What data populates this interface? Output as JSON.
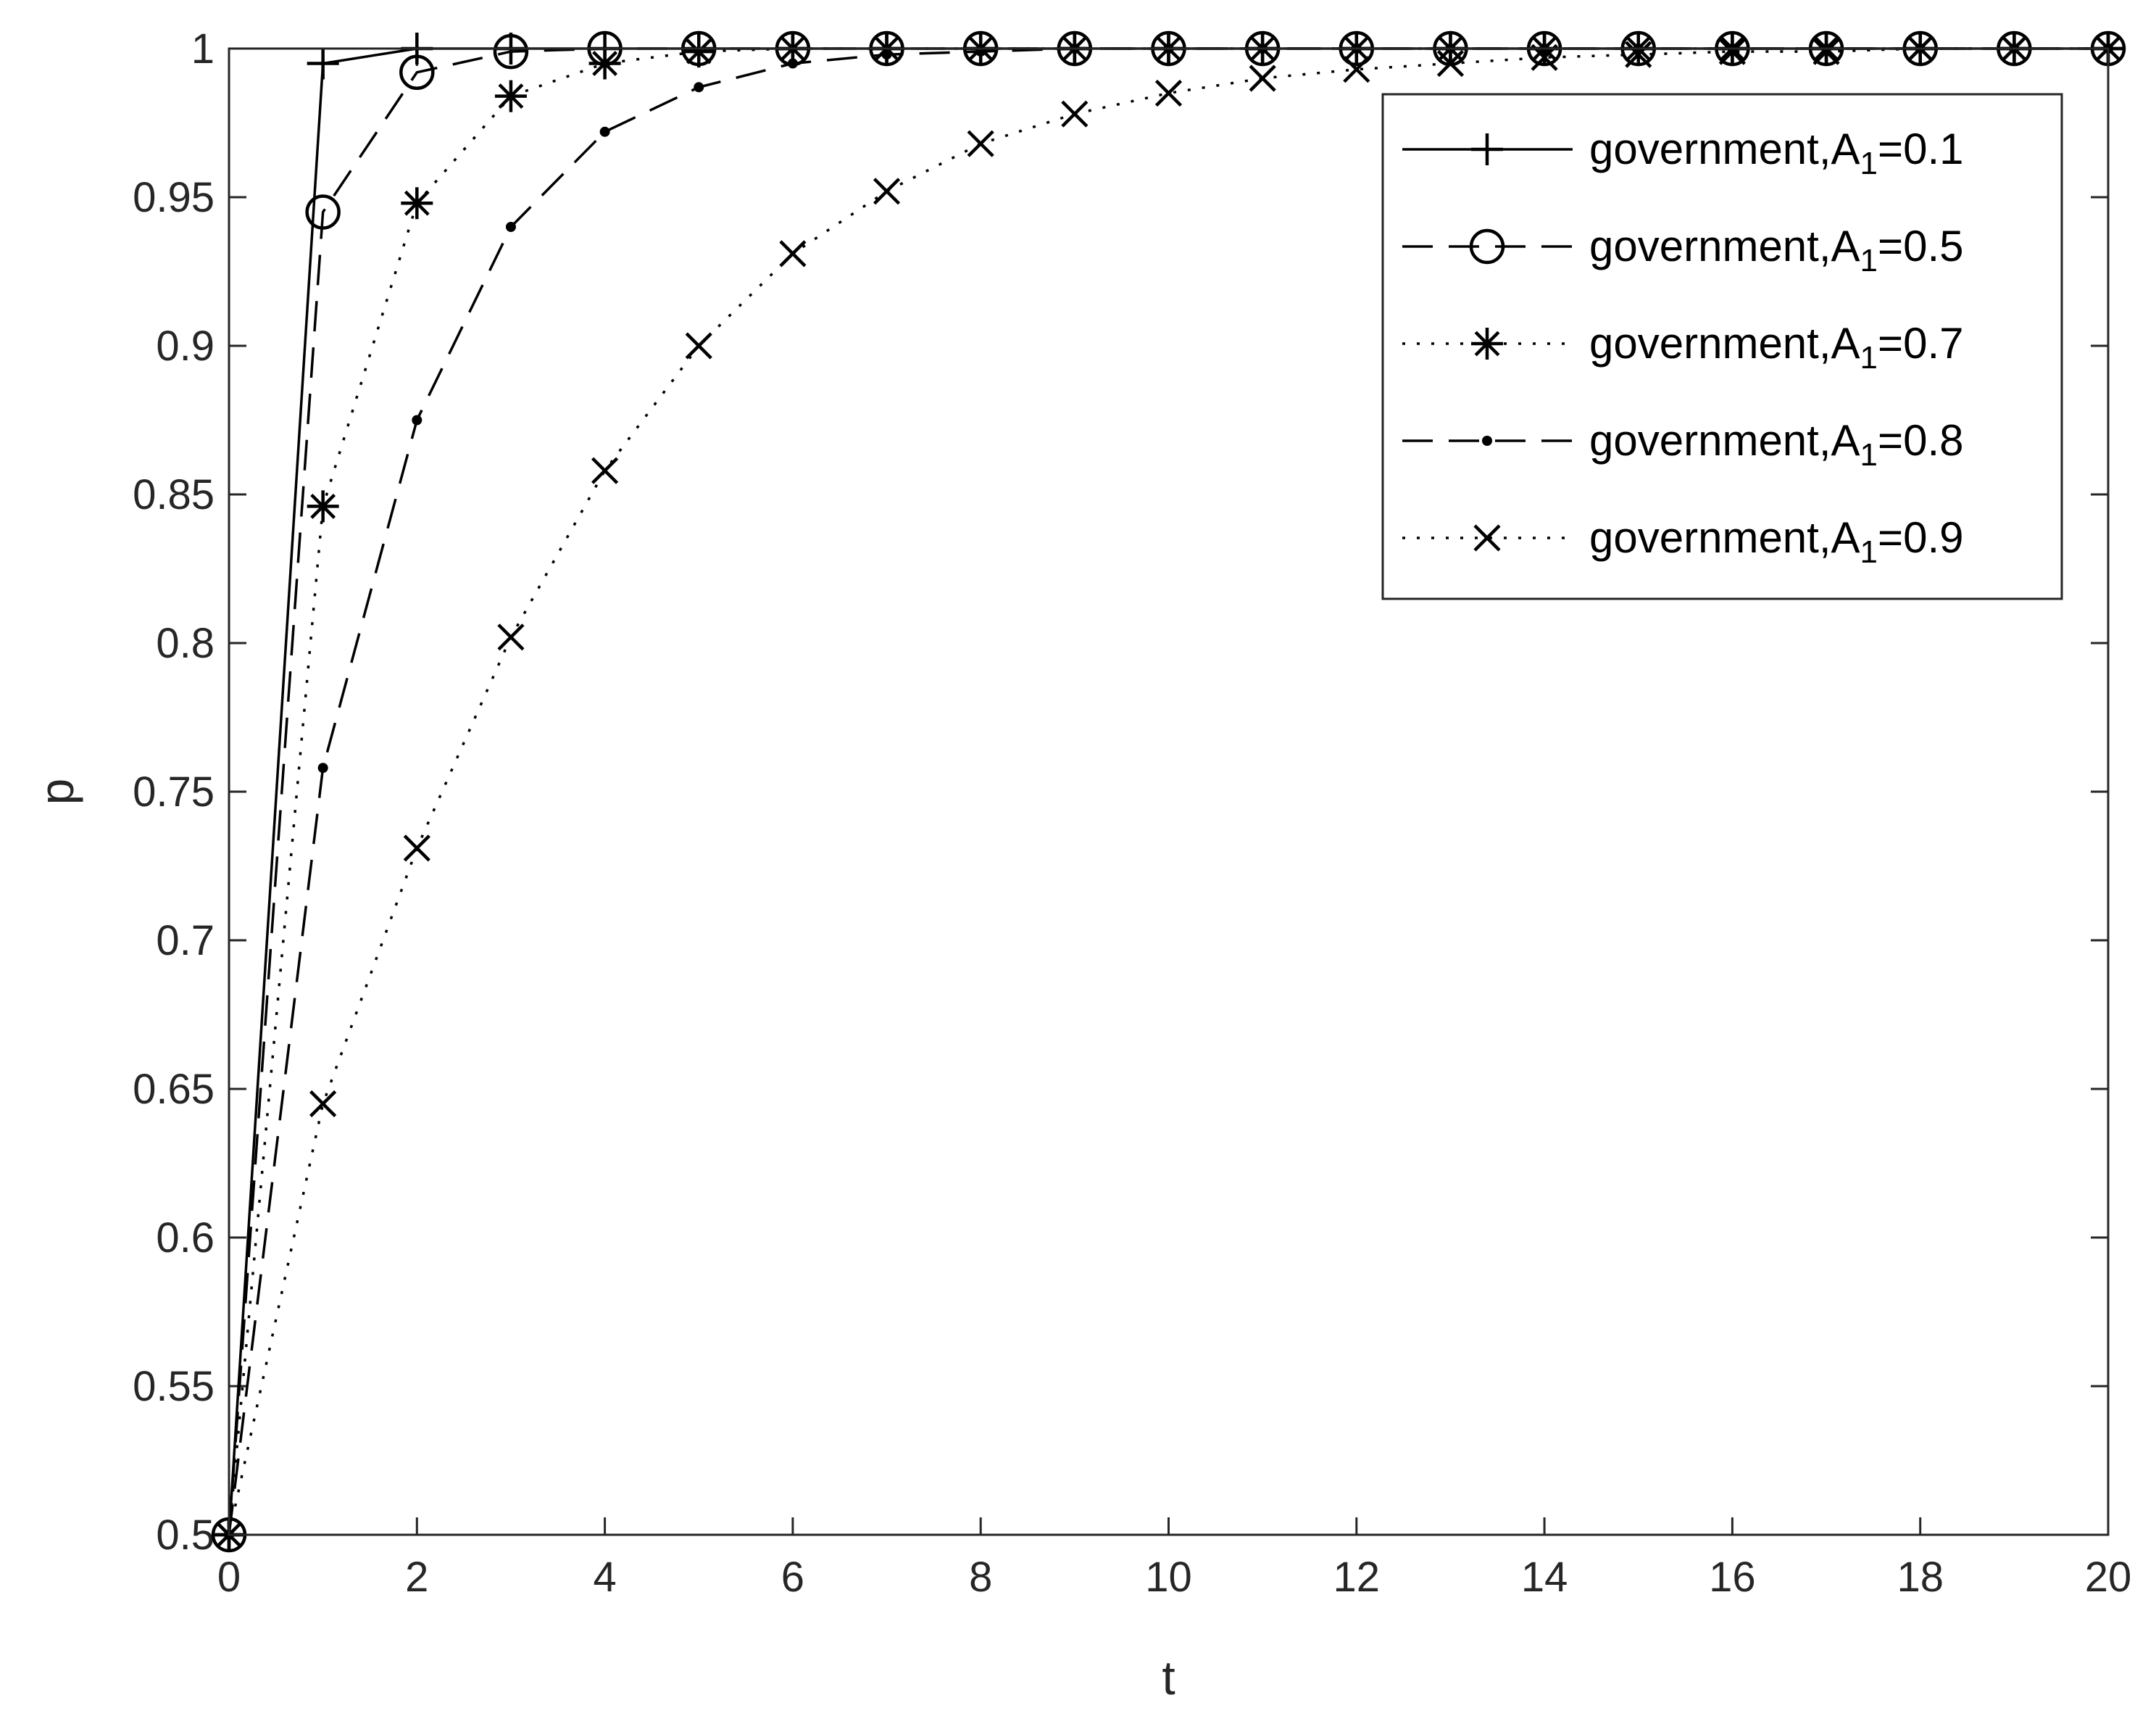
{
  "chart_data": {
    "type": "line",
    "xlabel": "t",
    "ylabel": "p",
    "xlim": [
      0,
      20
    ],
    "ylim": [
      0.5,
      1
    ],
    "xticks": [
      "0",
      "2",
      "4",
      "6",
      "8",
      "10",
      "12",
      "14",
      "16",
      "18",
      "20"
    ],
    "yticks": [
      "0.5",
      "0.55",
      "0.6",
      "0.65",
      "0.7",
      "0.75",
      "0.8",
      "0.85",
      "0.9",
      "0.95",
      "1"
    ],
    "legend_position": "top-right",
    "grid": false,
    "x": [
      0,
      1,
      2,
      3,
      4,
      5,
      6,
      7,
      8,
      9,
      10,
      11,
      12,
      13,
      14,
      15,
      16,
      17,
      18,
      19,
      20
    ],
    "series": [
      {
        "name": "government,A1=0.1",
        "name_parts": {
          "prefix": "government,A",
          "sub": "1",
          "suffix": "=0.1"
        },
        "line_style": "solid",
        "marker": "plus",
        "values": [
          0.5,
          0.995,
          1.0,
          1.0,
          1.0,
          1.0,
          1.0,
          1.0,
          1.0,
          1.0,
          1.0,
          1.0,
          1.0,
          1.0,
          1.0,
          1.0,
          1.0,
          1.0,
          1.0,
          1.0,
          1.0
        ]
      },
      {
        "name": "government,A1=0.5",
        "name_parts": {
          "prefix": "government,A",
          "sub": "1",
          "suffix": "=0.5"
        },
        "line_style": "dashed",
        "marker": "circle",
        "values": [
          0.5,
          0.945,
          0.992,
          0.999,
          1.0,
          1.0,
          1.0,
          1.0,
          1.0,
          1.0,
          1.0,
          1.0,
          1.0,
          1.0,
          1.0,
          1.0,
          1.0,
          1.0,
          1.0,
          1.0,
          1.0
        ]
      },
      {
        "name": "government,A1=0.7",
        "name_parts": {
          "prefix": "government,A",
          "sub": "1",
          "suffix": "=0.7"
        },
        "line_style": "dotted",
        "marker": "asterisk",
        "values": [
          0.5,
          0.846,
          0.948,
          0.984,
          0.995,
          0.999,
          1.0,
          1.0,
          1.0,
          1.0,
          1.0,
          1.0,
          1.0,
          1.0,
          1.0,
          1.0,
          1.0,
          1.0,
          1.0,
          1.0,
          1.0
        ]
      },
      {
        "name": "government,A1=0.8",
        "name_parts": {
          "prefix": "government,A",
          "sub": "1",
          "suffix": "=0.8"
        },
        "line_style": "dashed",
        "marker": "dot",
        "values": [
          0.5,
          0.758,
          0.875,
          0.94,
          0.972,
          0.987,
          0.995,
          0.998,
          0.999,
          1.0,
          1.0,
          1.0,
          1.0,
          1.0,
          1.0,
          1.0,
          1.0,
          1.0,
          1.0,
          1.0,
          1.0
        ]
      },
      {
        "name": "government,A1=0.9",
        "name_parts": {
          "prefix": "government,A",
          "sub": "1",
          "suffix": "=0.9"
        },
        "line_style": "dotted",
        "marker": "x",
        "values": [
          0.5,
          0.645,
          0.731,
          0.802,
          0.858,
          0.9,
          0.931,
          0.952,
          0.968,
          0.978,
          0.985,
          0.99,
          0.993,
          0.995,
          0.997,
          0.998,
          0.999,
          0.999,
          1.0,
          1.0,
          1.0
        ]
      }
    ]
  }
}
